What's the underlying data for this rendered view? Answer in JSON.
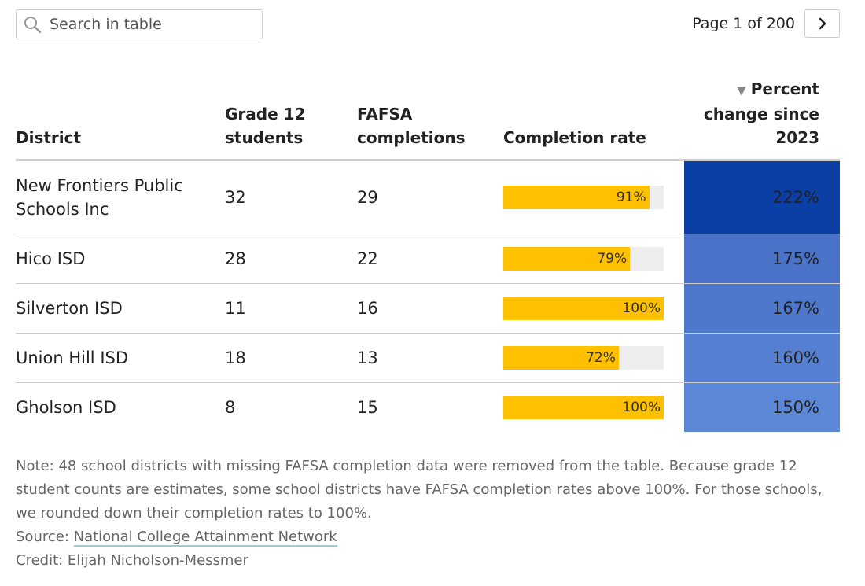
{
  "search": {
    "placeholder": "Search in table",
    "icon": "search-icon"
  },
  "pagination": {
    "label": "Page 1 of 200",
    "next_icon": "chevron-right-icon"
  },
  "table": {
    "columns": [
      {
        "key": "district",
        "label": "District"
      },
      {
        "key": "grade12",
        "label": "Grade 12 students"
      },
      {
        "key": "fafsa",
        "label": "FAFSA completions"
      },
      {
        "key": "rate",
        "label": "Completion rate"
      },
      {
        "key": "pct",
        "label": "Percent change since 2023",
        "sort_indicator": "▼"
      }
    ],
    "rows": [
      {
        "district": "New Frontiers Public Schools Inc",
        "grade12": "32",
        "fafsa": "29",
        "rate_label": "91%",
        "rate": 91,
        "pct": "222%",
        "pct_color": "#0b3fa6"
      },
      {
        "district": "Hico ISD",
        "grade12": "28",
        "fafsa": "22",
        "rate_label": "79%",
        "rate": 79,
        "pct": "175%",
        "pct_color": "#4a72c9"
      },
      {
        "district": "Silverton ISD",
        "grade12": "11",
        "fafsa": "16",
        "rate_label": "100%",
        "rate": 100,
        "pct": "167%",
        "pct_color": "#4e78cc"
      },
      {
        "district": "Union Hill ISD",
        "grade12": "18",
        "fafsa": "13",
        "rate_label": "72%",
        "rate": 72,
        "pct": "160%",
        "pct_color": "#5580d1"
      },
      {
        "district": "Gholson ISD",
        "grade12": "8",
        "fafsa": "15",
        "rate_label": "100%",
        "rate": 100,
        "pct": "150%",
        "pct_color": "#5b87d6"
      }
    ]
  },
  "colors": {
    "bar_fill": "#ffc000",
    "bar_track": "#eeeeee",
    "source_underline": "#8fd3d0"
  },
  "footer": {
    "note": "Note: 48 school districts with missing FAFSA completion data were removed from the table. Because grade 12 student counts are estimates, some school districts have FAFSA completion rates above 100%. For those schools, we rounded down their completion rates to 100%.",
    "source_prefix": "Source: ",
    "source_link": "National College Attainment Network",
    "credit": "Credit: Elijah Nicholson-Messmer"
  }
}
